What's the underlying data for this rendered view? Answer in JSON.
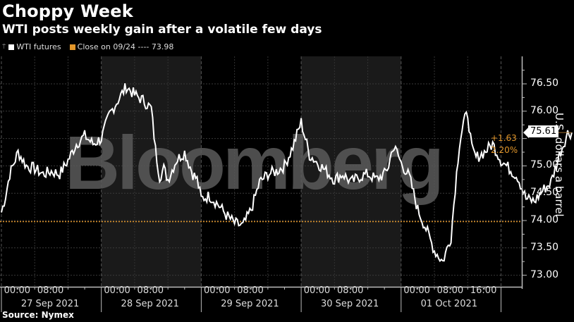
{
  "title": "Choppy Week",
  "subtitle": "WTI posts weekly gain after a volatile few days",
  "legend": {
    "series_label": "WTI futures",
    "series_color": "#ffffff",
    "reference_label": "Close on 09/24 ---- 73.98",
    "reference_color": "#e2962a"
  },
  "source": "Source: Nymex",
  "last_value": {
    "price": "75.61",
    "change": "+1.63",
    "change_pct": "2.20%"
  },
  "watermark": "Bloomberg",
  "chart_data": {
    "type": "line",
    "title": "Choppy Week",
    "subtitle": "WTI posts weekly gain after a volatile few days",
    "xlabel": "",
    "ylabel": "U.S. dollars a barrel",
    "ylim": [
      72.75,
      76.95
    ],
    "y_ticks": [
      "73.00",
      "73.50",
      "74.00",
      "74.50",
      "75.00",
      "75.50",
      "76.00",
      "76.50"
    ],
    "x_tick_labels": [
      "00:00",
      "08:00",
      "00:00",
      "08:00",
      "00:00",
      "08:00",
      "00:00",
      "08:00",
      "00:00",
      "08:00",
      "16:00"
    ],
    "x_day_labels": [
      "27 Sep 2021",
      "28 Sep 2021",
      "29 Sep 2021",
      "30 Sep 2021",
      "01 Oct 2021"
    ],
    "grid": true,
    "legend_position": "top-left",
    "reference_line": {
      "label": "Close on 09/24",
      "value": 73.98,
      "color": "#e2962a",
      "style": "dotted"
    },
    "last_price_label": 75.61,
    "annotation": {
      "change": "+1.63",
      "change_pct": "2.20%"
    },
    "series": [
      {
        "name": "WTI futures",
        "x_hours_since_sep27_start": [
          0,
          1,
          2,
          3,
          4,
          6,
          8,
          10,
          12,
          14,
          16,
          18,
          20,
          22,
          23,
          24,
          26,
          28,
          30,
          32,
          34,
          36,
          37,
          38,
          39,
          40,
          42,
          44,
          46,
          47,
          48,
          50,
          52,
          54,
          56,
          58,
          60,
          62,
          64,
          66,
          68,
          70,
          72,
          74,
          76,
          78,
          80,
          82,
          84,
          86,
          88,
          90,
          92,
          93,
          94,
          95,
          96,
          98,
          100,
          102,
          104,
          106,
          108,
          109,
          110,
          111,
          112,
          113,
          114,
          116,
          118,
          120,
          122,
          124,
          126,
          128,
          130,
          132,
          134,
          136,
          137
        ],
        "values": [
          74.15,
          74.45,
          74.85,
          75.05,
          75.25,
          75.0,
          74.95,
          74.85,
          74.9,
          74.85,
          75.1,
          75.4,
          75.55,
          75.4,
          75.45,
          75.5,
          75.95,
          76.2,
          76.45,
          76.3,
          76.2,
          76.05,
          75.3,
          74.8,
          74.95,
          74.75,
          75.1,
          75.25,
          74.85,
          74.75,
          74.4,
          74.45,
          74.3,
          74.1,
          73.95,
          73.9,
          74.2,
          74.7,
          74.85,
          74.9,
          75.0,
          75.35,
          75.8,
          75.2,
          75.05,
          74.9,
          74.75,
          74.85,
          74.7,
          74.8,
          74.85,
          74.75,
          74.85,
          75.0,
          75.35,
          75.25,
          75.05,
          74.8,
          74.2,
          73.85,
          73.45,
          73.25,
          73.7,
          74.6,
          75.4,
          75.8,
          75.95,
          75.3,
          75.15,
          75.25,
          75.4,
          75.1,
          74.95,
          74.8,
          74.4,
          74.35,
          74.55,
          74.7,
          75.2,
          75.6,
          75.61
        ],
        "color": "#ffffff"
      }
    ]
  }
}
